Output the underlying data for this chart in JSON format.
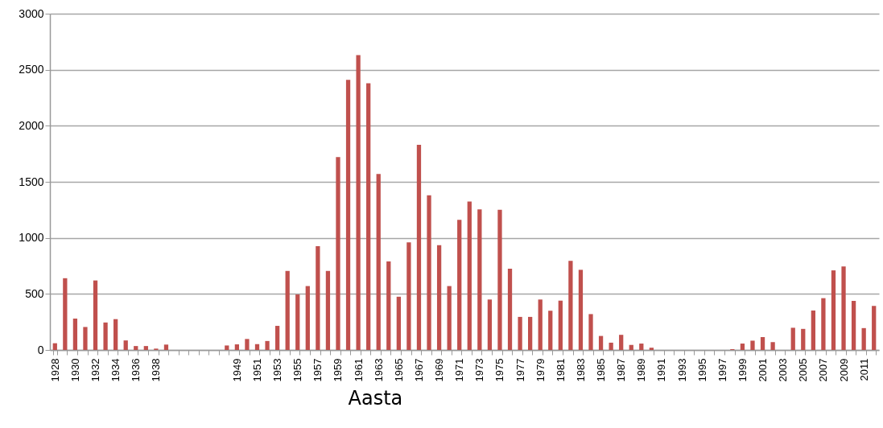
{
  "chart_data": {
    "type": "bar",
    "xlabel": "Aasta",
    "categories": [
      "1928",
      null,
      "1930",
      null,
      "1932",
      null,
      "1934",
      null,
      "1936",
      null,
      "1938",
      null,
      null,
      null,
      null,
      null,
      null,
      null,
      "1949",
      null,
      "1951",
      null,
      "1953",
      null,
      "1955",
      null,
      "1957",
      null,
      "1959",
      null,
      "1961",
      null,
      "1963",
      null,
      "1965",
      null,
      "1967",
      null,
      "1969",
      null,
      "1971",
      null,
      "1973",
      null,
      "1975",
      null,
      "1977",
      null,
      "1979",
      null,
      "1981",
      null,
      "1983",
      null,
      "1985",
      null,
      "1987",
      null,
      "1989",
      null,
      "1991",
      null,
      "1993",
      null,
      "1995",
      null,
      "1997",
      null,
      "1999",
      null,
      "2001",
      null,
      "2003",
      null,
      "2005",
      null,
      "2007",
      null,
      "2009",
      null,
      "2011",
      null
    ],
    "values": [
      60,
      640,
      280,
      205,
      620,
      245,
      275,
      85,
      35,
      35,
      12,
      48,
      null,
      null,
      null,
      null,
      null,
      40,
      50,
      98,
      52,
      80,
      215,
      705,
      495,
      570,
      925,
      705,
      1720,
      2410,
      2630,
      2380,
      1570,
      790,
      475,
      960,
      1830,
      1380,
      935,
      570,
      1160,
      1325,
      1255,
      450,
      1250,
      725,
      295,
      295,
      450,
      350,
      440,
      795,
      715,
      320,
      125,
      65,
      135,
      45,
      57,
      20,
      0,
      0,
      0,
      0,
      0,
      0,
      0,
      7,
      57,
      83,
      115,
      70,
      0,
      198,
      188,
      352,
      462,
      710,
      745,
      438,
      195,
      393
    ],
    "color": "#c0504d",
    "ylim": [
      0,
      3000
    ],
    "yticks": [
      0,
      500,
      1000,
      1500,
      2000,
      2500,
      3000
    ],
    "grid": "y"
  }
}
